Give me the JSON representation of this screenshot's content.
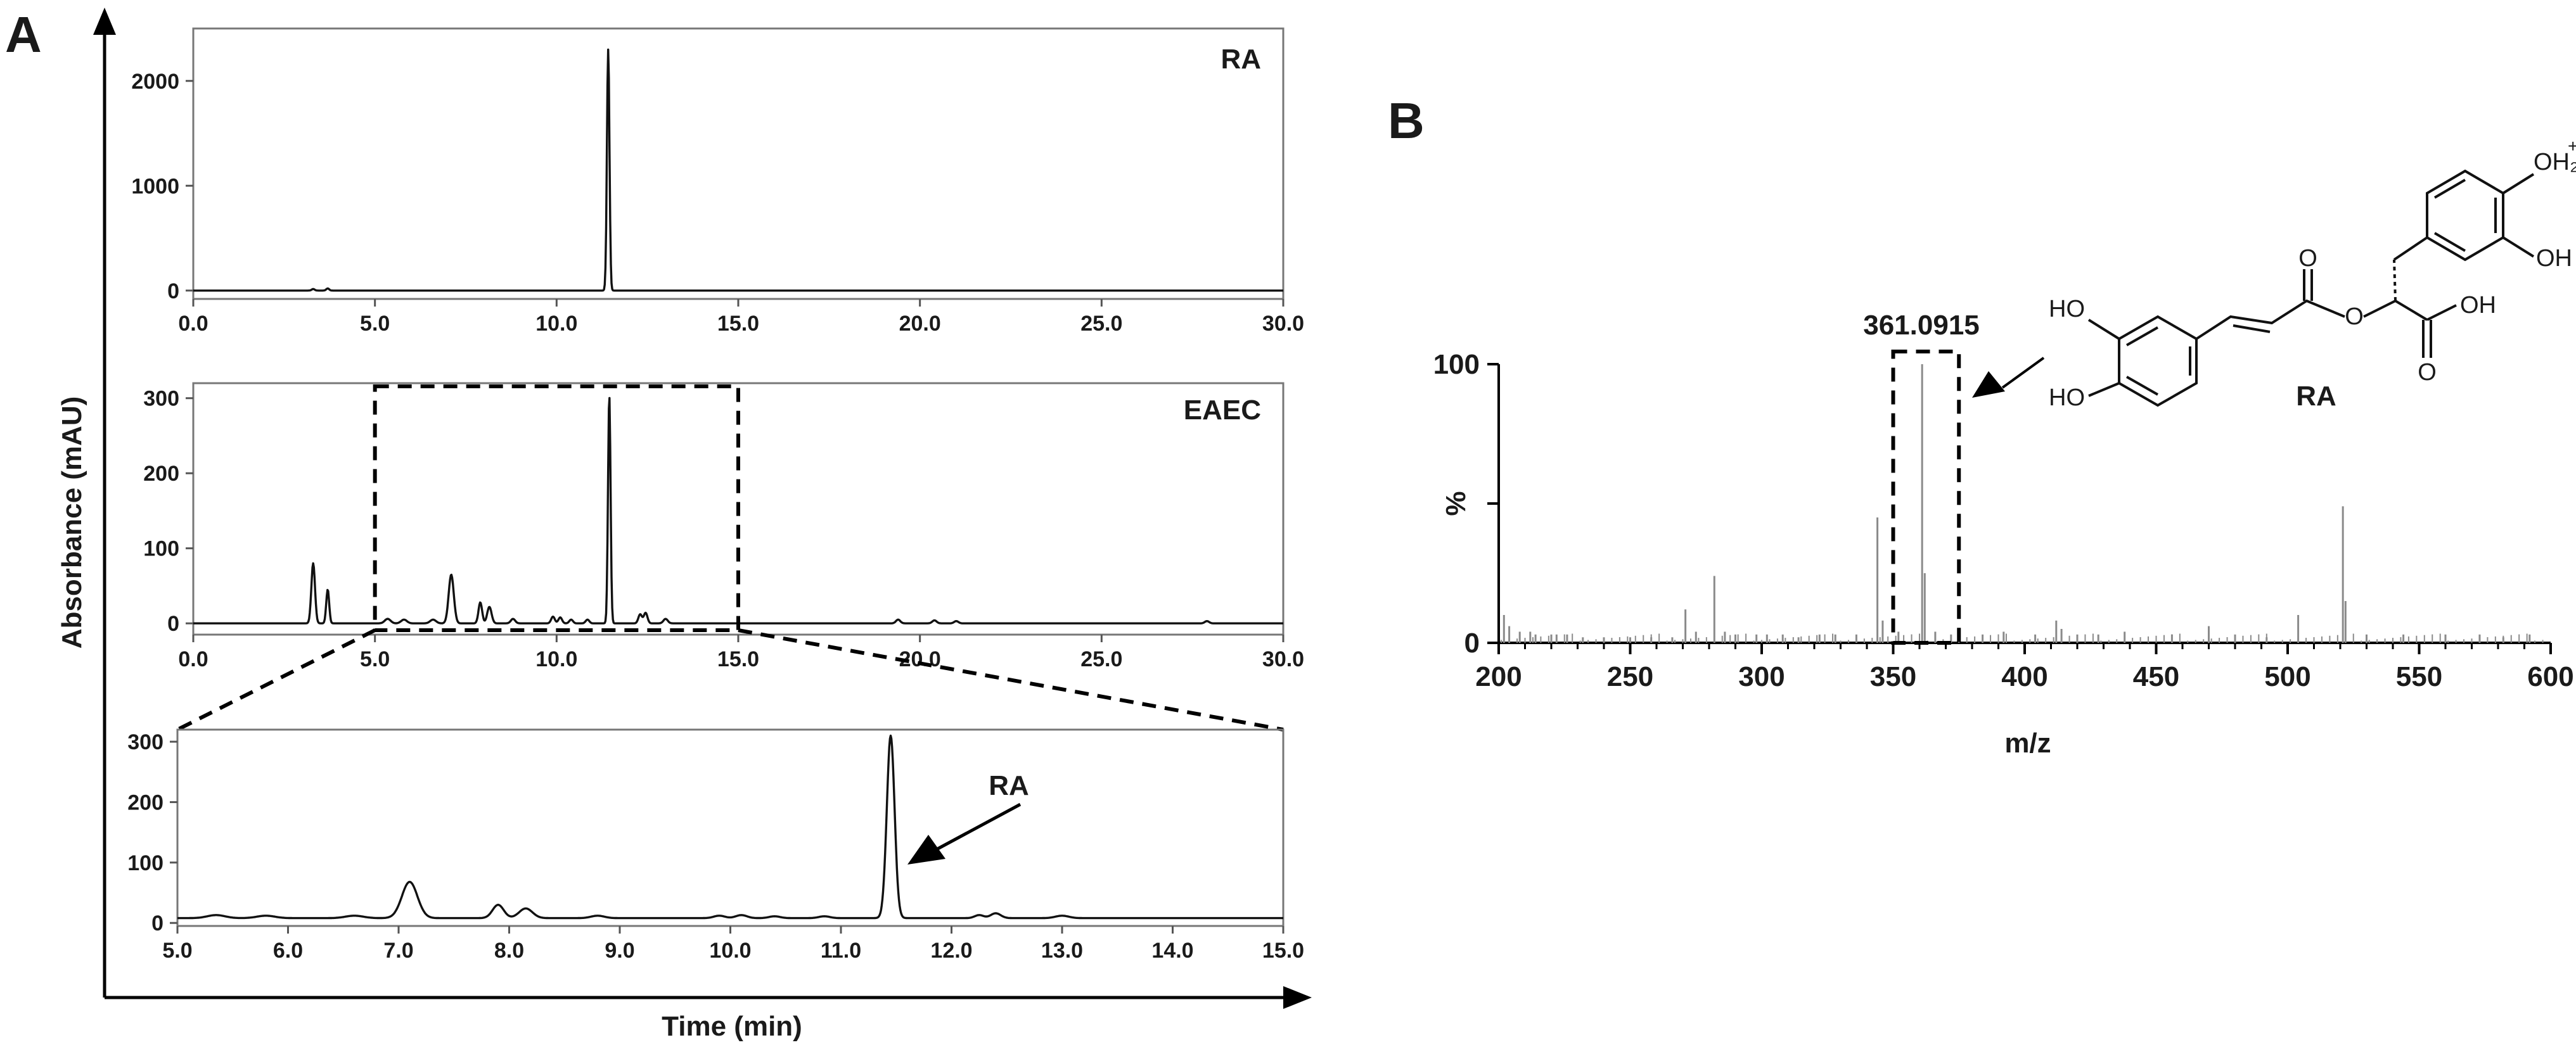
{
  "figure": {
    "panel_a_letter": "A",
    "panel_b_letter": "B",
    "y_axis_label": "Absorbance (mAU)",
    "x_axis_label": "Time (min)"
  },
  "chart_data": [
    {
      "type": "line",
      "panel": "A",
      "subplot": "RA standard",
      "label": "RA",
      "xlim": [
        0,
        30
      ],
      "ylim": [
        -80,
        2500
      ],
      "xticks": [
        "0.0",
        "5.0",
        "10.0",
        "15.0",
        "20.0",
        "25.0",
        "30.0"
      ],
      "yticks": [
        "0",
        "1000",
        "2000"
      ],
      "series": [
        {
          "x": [
            0,
            3.3,
            3.7,
            11.4,
            30
          ],
          "y": [
            0,
            15,
            20,
            2300,
            0
          ]
        }
      ],
      "peaks": [
        [
          3.3,
          15,
          0.04
        ],
        [
          3.7,
          20,
          0.04
        ],
        [
          11.42,
          2300,
          0.035
        ]
      ]
    },
    {
      "type": "line",
      "panel": "A",
      "subplot": "EAEC extract",
      "label": "EAEC",
      "xlim": [
        0,
        30
      ],
      "ylim": [
        -15,
        320
      ],
      "xticks": [
        "0.0",
        "5.0",
        "10.0",
        "15.0",
        "20.0",
        "25.0",
        "30.0"
      ],
      "yticks": [
        "0",
        "100",
        "200",
        "300"
      ],
      "highlight_window": [
        5,
        15
      ],
      "series": [
        {
          "x": [
            0,
            3.3,
            3.7,
            7.1,
            7.9,
            8.2,
            11.45,
            30
          ],
          "y": [
            0,
            80,
            45,
            65,
            28,
            20,
            305,
            0
          ]
        }
      ],
      "peaks": [
        [
          3.3,
          80,
          0.05
        ],
        [
          3.7,
          45,
          0.04
        ],
        [
          5.35,
          6,
          0.08
        ],
        [
          5.8,
          5,
          0.08
        ],
        [
          6.6,
          5,
          0.08
        ],
        [
          7.1,
          65,
          0.07
        ],
        [
          7.9,
          28,
          0.05
        ],
        [
          8.15,
          22,
          0.06
        ],
        [
          8.8,
          6,
          0.06
        ],
        [
          9.9,
          9,
          0.05
        ],
        [
          10.1,
          8,
          0.05
        ],
        [
          10.4,
          5,
          0.05
        ],
        [
          10.85,
          5,
          0.05
        ],
        [
          11.45,
          305,
          0.035
        ],
        [
          12.3,
          12,
          0.05
        ],
        [
          12.45,
          14,
          0.05
        ],
        [
          13.0,
          6,
          0.06
        ],
        [
          19.4,
          5,
          0.06
        ],
        [
          20.4,
          4,
          0.06
        ],
        [
          21.0,
          3,
          0.06
        ],
        [
          27.9,
          3,
          0.06
        ]
      ]
    },
    {
      "type": "line",
      "panel": "A",
      "subplot": "EAEC zoom 5-15 min",
      "annotation": "RA",
      "xlim": [
        5,
        15
      ],
      "ylim": [
        -5,
        320
      ],
      "xticks": [
        "5.0",
        "6.0",
        "7.0",
        "8.0",
        "9.0",
        "10.0",
        "11.0",
        "12.0",
        "13.0",
        "14.0",
        "15.0"
      ],
      "yticks": [
        "0",
        "100",
        "200",
        "300"
      ],
      "baseline": 8,
      "series": [
        {
          "x": [
            5,
            7.1,
            7.9,
            8.2,
            11.45,
            15
          ],
          "y": [
            8,
            68,
            30,
            24,
            310,
            8
          ]
        }
      ],
      "peaks": [
        [
          5.35,
          5,
          0.08
        ],
        [
          5.8,
          4,
          0.08
        ],
        [
          6.6,
          4,
          0.08
        ],
        [
          7.1,
          60,
          0.07
        ],
        [
          7.9,
          22,
          0.05
        ],
        [
          8.15,
          16,
          0.06
        ],
        [
          8.8,
          4,
          0.06
        ],
        [
          9.9,
          4,
          0.05
        ],
        [
          10.1,
          5,
          0.05
        ],
        [
          10.4,
          3,
          0.05
        ],
        [
          10.85,
          3,
          0.05
        ],
        [
          11.45,
          302,
          0.035
        ],
        [
          12.25,
          5,
          0.04
        ],
        [
          12.4,
          8,
          0.045
        ],
        [
          13.0,
          4,
          0.06
        ]
      ]
    },
    {
      "type": "bar",
      "panel": "B",
      "subplot": "mass spectrum",
      "xlabel": "m/z",
      "ylabel": "%",
      "xlim": [
        200,
        600
      ],
      "ylim": [
        0,
        100
      ],
      "xticks": [
        "200",
        "250",
        "300",
        "350",
        "400",
        "450",
        "500",
        "550",
        "600"
      ],
      "yticks": [
        "0",
        "100"
      ],
      "mid_y_label": "%",
      "peak_label": "361.0915",
      "highlight_window": [
        350,
        375
      ],
      "peaks": [
        [
          202,
          10
        ],
        [
          204,
          6
        ],
        [
          208,
          4
        ],
        [
          212,
          4
        ],
        [
          214,
          3
        ],
        [
          220,
          3
        ],
        [
          222,
          3
        ],
        [
          226,
          3
        ],
        [
          232,
          2
        ],
        [
          240,
          2
        ],
        [
          250,
          2
        ],
        [
          258,
          2
        ],
        [
          266,
          2
        ],
        [
          271,
          12
        ],
        [
          275,
          4
        ],
        [
          282,
          24
        ],
        [
          286,
          4
        ],
        [
          290,
          3
        ],
        [
          298,
          3
        ],
        [
          302,
          3
        ],
        [
          308,
          3
        ],
        [
          314,
          2
        ],
        [
          322,
          3
        ],
        [
          328,
          3
        ],
        [
          336,
          3
        ],
        [
          344,
          45
        ],
        [
          346,
          8
        ],
        [
          352,
          4
        ],
        [
          361,
          100
        ],
        [
          362,
          25
        ],
        [
          366,
          4
        ],
        [
          372,
          3
        ],
        [
          384,
          3
        ],
        [
          392,
          4
        ],
        [
          404,
          3
        ],
        [
          412,
          8
        ],
        [
          414,
          5
        ],
        [
          420,
          3
        ],
        [
          428,
          3
        ],
        [
          438,
          4
        ],
        [
          456,
          3
        ],
        [
          470,
          6
        ],
        [
          480,
          3
        ],
        [
          492,
          2
        ],
        [
          504,
          10
        ],
        [
          521,
          49
        ],
        [
          522,
          15
        ],
        [
          530,
          3
        ],
        [
          544,
          3
        ],
        [
          560,
          3
        ],
        [
          573,
          3
        ],
        [
          582,
          2
        ],
        [
          592,
          3
        ]
      ]
    }
  ],
  "structure": {
    "compound_label": "RA",
    "labels": [
      "HO",
      "HO",
      "O",
      "O",
      "OH",
      "O",
      "OH",
      "OH₂",
      "+",
      "OH"
    ]
  }
}
